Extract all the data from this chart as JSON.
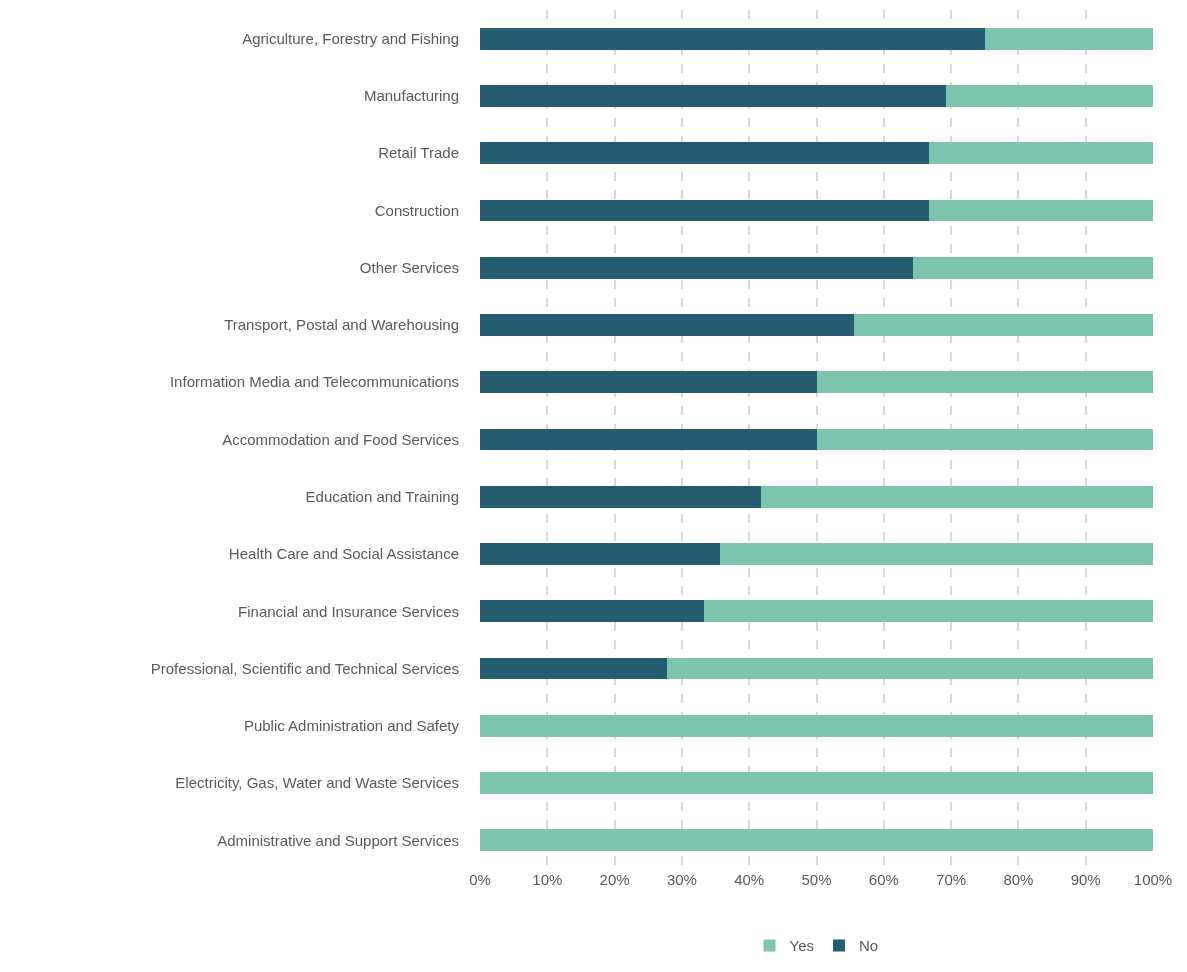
{
  "chart_data": {
    "type": "bar",
    "orientation": "horizontal",
    "stacked": true,
    "categories": [
      "Agriculture, Forestry and Fishing",
      "Manufacturing",
      "Retail Trade",
      "Construction",
      "Other Services",
      "Transport, Postal and Warehousing",
      "Information Media and Telecommunications",
      "Accommodation and Food Services",
      "Education and Training",
      "Health Care and Social Assistance",
      "Financial and Insurance Services",
      "Professional, Scientific and Technical Services",
      "Public Administration and Safety",
      "Electricity, Gas, Water and Waste Services",
      "Administrative and Support Services"
    ],
    "series": [
      {
        "name": "No",
        "color": "#255c70",
        "values": [
          75.0,
          69.2,
          66.7,
          66.7,
          64.3,
          55.6,
          50.0,
          50.0,
          41.7,
          35.7,
          33.3,
          27.8,
          0,
          0,
          0
        ]
      },
      {
        "name": "Yes",
        "color": "#7cc4ad",
        "values": [
          25.0,
          30.8,
          33.3,
          33.3,
          35.7,
          44.4,
          50.0,
          50.0,
          58.3,
          64.3,
          66.7,
          72.2,
          100,
          100,
          100
        ]
      }
    ],
    "xlim": [
      0,
      100
    ],
    "xticks": [
      {
        "value": 0,
        "label": "0%"
      },
      {
        "value": 10,
        "label": "10%"
      },
      {
        "value": 20,
        "label": "20%"
      },
      {
        "value": 30,
        "label": "30%"
      },
      {
        "value": 40,
        "label": "40%"
      },
      {
        "value": 50,
        "label": "50%"
      },
      {
        "value": 60,
        "label": "60%"
      },
      {
        "value": 70,
        "label": "70%"
      },
      {
        "value": 80,
        "label": "80%"
      },
      {
        "value": 90,
        "label": "90%"
      },
      {
        "value": 100,
        "label": "100%"
      }
    ],
    "grid": "x",
    "legend": "bottom"
  }
}
